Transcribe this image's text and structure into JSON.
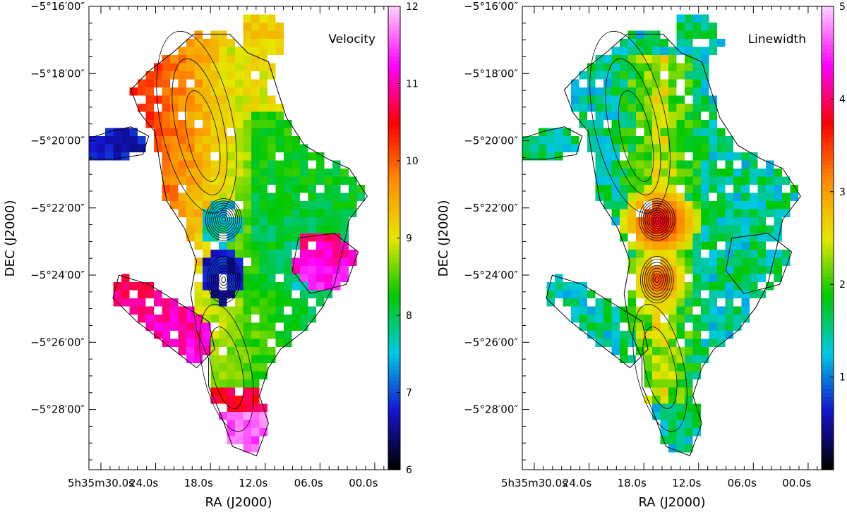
{
  "chart_data": [
    {
      "type": "heatmap",
      "title": "Velocity",
      "xlabel": "RA (J2000)",
      "ylabel": "DEC (J2000)",
      "xticks": [
        "5h35m30.0s",
        "24.0s",
        "18.0s",
        "12.0s",
        "06.0s",
        "00.0s"
      ],
      "yticks": [
        "−5°16′00″",
        "−5°18′00″",
        "−5°20′00″",
        "−5°22′00″",
        "−5°24′00″",
        "−5°26′00″",
        "−5°28′00″"
      ],
      "colorbar": {
        "min": 6,
        "max": 12,
        "ticks": [
          6,
          7,
          8,
          9,
          10,
          11,
          12
        ]
      },
      "colormap": [
        "#000000",
        "#1414d0",
        "#00c8e6",
        "#00c800",
        "#e6e600",
        "#ff8c00",
        "#ff0000",
        "#ff00ff",
        "#ffc8ff"
      ],
      "features": [
        {
          "name": "northern ridge",
          "value": 10.0
        },
        {
          "name": "core north",
          "value": 7.6
        },
        {
          "name": "core south",
          "value": 6.7
        },
        {
          "name": "southern filament",
          "value": 9.0
        },
        {
          "name": "south-west streamer",
          "value": 10.8
        },
        {
          "name": "eastern clump",
          "value": 10.8
        },
        {
          "name": "western arm",
          "value": 6.7
        },
        {
          "name": "southern tip",
          "value": 11.6
        }
      ]
    },
    {
      "type": "heatmap",
      "title": "Linewidth",
      "xlabel": "RA (J2000)",
      "ylabel": "DEC (J2000)",
      "xticks": [
        "5h35m30.0s",
        "24.0s",
        "18.0s",
        "12.0s",
        "06.0s",
        "00.0s"
      ],
      "yticks": [
        "−5°16′00″",
        "−5°18′00″",
        "−5°20′00″",
        "−5°22′00″",
        "−5°24′00″",
        "−5°26′00″",
        "−5°28′00″"
      ],
      "colorbar": {
        "min": 0,
        "max": 5,
        "ticks": [
          1,
          2,
          3,
          4,
          5
        ]
      },
      "colormap": [
        "#000000",
        "#1414d0",
        "#00c8e6",
        "#00c800",
        "#e6e600",
        "#ff8c00",
        "#ff0000",
        "#ff00ff",
        "#ffc8ff"
      ],
      "features": [
        {
          "name": "ridge background",
          "value": 1.4
        },
        {
          "name": "ridge centre",
          "value": 2.2
        },
        {
          "name": "core north",
          "value": 4.0
        },
        {
          "name": "core south",
          "value": 3.6
        },
        {
          "name": "filament",
          "value": 1.9
        }
      ]
    }
  ]
}
